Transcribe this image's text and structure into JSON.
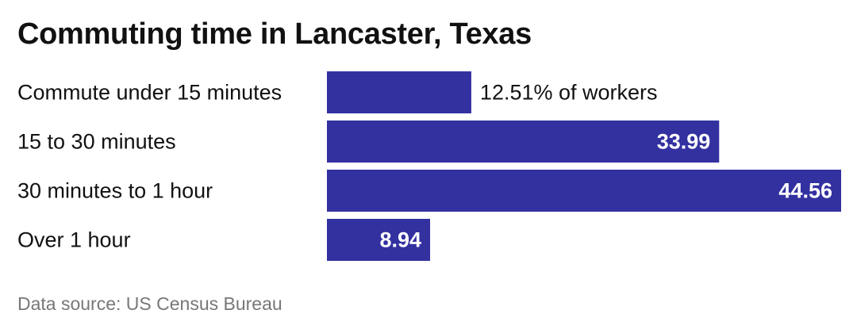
{
  "title": "Commuting time in Lancaster, Texas",
  "source": "Data source: US Census Bureau",
  "colors": {
    "bar": "#3331a0",
    "label_text": "#111111",
    "value_inside": "#ffffff",
    "value_outside": "#111111",
    "source_text": "#777777"
  },
  "chart_data": {
    "type": "bar",
    "orientation": "horizontal",
    "title": "Commuting time in Lancaster, Texas",
    "categories": [
      "Commute under 15 minutes",
      "15 to 30 minutes",
      "30 minutes to 1 hour",
      "Over 1 hour"
    ],
    "values": [
      12.51,
      33.99,
      44.56,
      8.94
    ],
    "data_labels": [
      "12.51% of workers",
      "33.99",
      "44.56",
      "8.94"
    ],
    "unit": "% of workers",
    "xlim": [
      0,
      44.56
    ],
    "grid": false,
    "legend": "none"
  }
}
